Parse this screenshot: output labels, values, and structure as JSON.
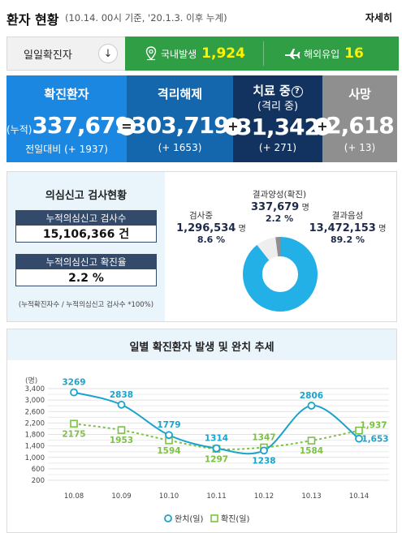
{
  "header": {
    "title": "환자 현황",
    "subtitle": "(10.14. 00시 기준, '20.1.3. 이후 누계)",
    "more_label": "자세히"
  },
  "daily": {
    "label": "일일확진자",
    "domestic_label": "국내발생",
    "domestic_value": "1,924",
    "overseas_label": "해외유입",
    "overseas_value": "16"
  },
  "stats": {
    "confirmed": {
      "title": "확진환자",
      "prefix": "(누적)",
      "value": "337,679",
      "delta": "전일대비 (+ 1937)"
    },
    "released": {
      "title": "격리해제",
      "value": "303,719",
      "delta": "(+ 1653)"
    },
    "treatment": {
      "title": "치료 중",
      "subtitle": "(격리 중)",
      "help": "?",
      "value": "31,342",
      "delta": "(+ 271)"
    },
    "death": {
      "title": "사망",
      "value": "2,618",
      "delta": "(+ 13)"
    },
    "op1": "=",
    "op2": "+",
    "op3": "+"
  },
  "test": {
    "title": "의심신고 검사현황",
    "tests_label": "누적의심신고 검사수",
    "tests_value": "15,106,366 건",
    "rate_label": "누적의심신고 확진율",
    "rate_value": "2.2 %",
    "note": "(누적확진자수 / 누적의심신고 검사수 *100%)",
    "pie": {
      "positive": {
        "label": "결과양성(확진)",
        "value": "337,679",
        "unit": "명",
        "pct": "2.2 %",
        "share": 2.2,
        "color": "#8f8f8f"
      },
      "testing": {
        "label": "검사중",
        "value": "1,296,534",
        "unit": "명",
        "pct": "8.6 %",
        "share": 8.6,
        "color": "#eeeeee"
      },
      "negative": {
        "label": "결과음성",
        "value": "13,472,153",
        "unit": "명",
        "pct": "89.2 %",
        "share": 89.2,
        "color": "#23b0e6"
      }
    }
  },
  "chart_data": {
    "type": "line",
    "title": "일별 확진환자 발생 및 완치 추세",
    "ylabel": "(명)",
    "categories": [
      "10.08",
      "10.09",
      "10.10",
      "10.11",
      "10.12",
      "10.13",
      "10.14"
    ],
    "yticks": [
      "3,400",
      "3,000",
      "2,600",
      "2,200",
      "1,800",
      "1,400",
      "1,000",
      "600",
      "200"
    ],
    "ylim": [
      0,
      3600
    ],
    "series": [
      {
        "name": "완치(일)",
        "values": [
          3269,
          2838,
          1779,
          1314,
          1238,
          2806,
          1653
        ],
        "labels": [
          "3269",
          "2838",
          "1779",
          "1314",
          "1238",
          "2806",
          "1,653"
        ],
        "color": "#1aa3cc"
      },
      {
        "name": "확진(일)",
        "values": [
          2175,
          1953,
          1594,
          1297,
          1347,
          1584,
          1937
        ],
        "labels": [
          "2175",
          "1953",
          "1594",
          "1297",
          "1347",
          "1584",
          "1,937"
        ],
        "color": "#7bc142"
      }
    ],
    "grid": true,
    "legend": "bottom-right"
  }
}
